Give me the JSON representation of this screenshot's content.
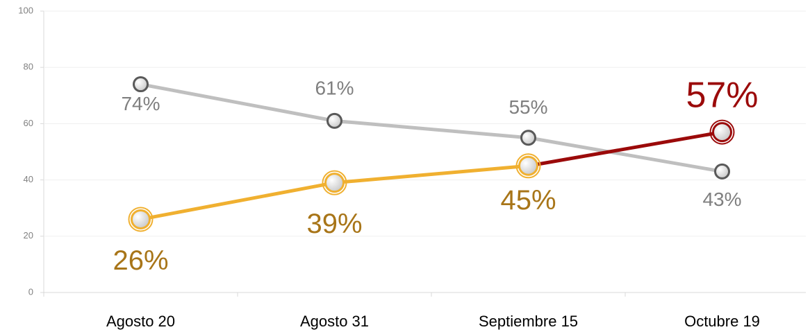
{
  "chart_data": {
    "type": "line",
    "categories": [
      "Agosto 20",
      "Agosto 31",
      "Septiembre 15",
      "Octubre 19"
    ],
    "series": [
      {
        "color": "#bfbfbf",
        "label_color": "#7f7f7f",
        "values": [
          74,
          61,
          55,
          43
        ],
        "value_labels": [
          "74%",
          "61%",
          "55%",
          "43%"
        ]
      },
      {
        "color": "#f0b030",
        "label_color": "#a87518",
        "point_colors": [
          "#f0b030",
          "#f0b030",
          "#f0b030",
          "#9b0a0a"
        ],
        "values": [
          26,
          39,
          45,
          57
        ],
        "value_labels": [
          "26%",
          "39%",
          "45%",
          "57%"
        ]
      }
    ],
    "ylim": [
      0,
      100
    ],
    "yticks": [
      0,
      20,
      40,
      60,
      80,
      100
    ],
    "grid": true
  }
}
